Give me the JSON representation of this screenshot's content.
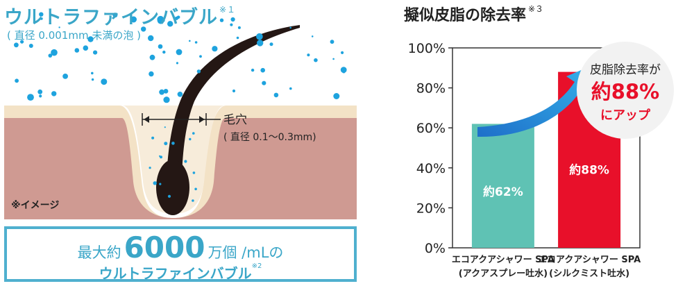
{
  "left_panel": {
    "title": "ウルトラファインバブル",
    "title_note": "※１",
    "subtitle": "( 直径 0.001mm 未満の泡 )",
    "pore_label": "毛穴",
    "pore_size": "( 直径 0.1～0.3mm)",
    "image_note": "※イメージ",
    "count_prefix": "最大約",
    "count_number": "6000",
    "count_suffix": "万個 /mLの",
    "count_line2": "ウルトラファインバブル",
    "count_line2_note": "※2"
  },
  "colors": {
    "accent_blue": "#3aa6c8",
    "teal_bar": "#5fc2b4",
    "red_bar": "#e8102a",
    "skin": "#cf9a92",
    "skin_outer": "#f3e2c6",
    "hair": "#241714"
  },
  "chart_data": {
    "type": "bar",
    "title": "擬似皮脂の除去率",
    "title_note": "※３",
    "categories": [
      [
        "エコアクアシャワー SPA",
        "(アクアスプレー吐水)"
      ],
      [
        "エコアクアシャワー SPA",
        "(シルクミスト吐水)"
      ]
    ],
    "values": [
      62,
      88
    ],
    "data_labels": [
      "約62%",
      "約88%"
    ],
    "bar_colors": [
      "#5fc2b4",
      "#e8102a"
    ],
    "ylim": [
      0,
      100
    ],
    "yticks": [
      "0%",
      "20%",
      "40%",
      "60%",
      "80%",
      "100%"
    ],
    "grid": false,
    "callout": {
      "line1": "皮脂除去率が",
      "line2": "約88%",
      "line3": "にアップ"
    }
  }
}
